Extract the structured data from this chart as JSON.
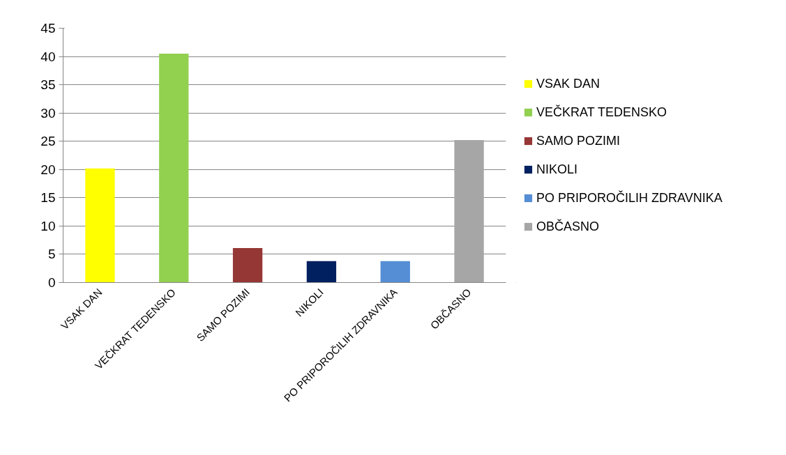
{
  "chart_data": {
    "type": "bar",
    "categories": [
      "VSAK DAN",
      "VEČKRAT TEDENSKO",
      "SAMO POZIMI",
      "NIKOLI",
      "PO PRIPOROČILIH ZDRAVNIKA",
      "OBČASNO"
    ],
    "series": [
      {
        "name": "VSAK DAN",
        "color": "#ffff00",
        "values": [
          20.2,
          null,
          null,
          null,
          null,
          null
        ]
      },
      {
        "name": "VEČKRAT TEDENSKO",
        "color": "#92d050",
        "values": [
          null,
          40.5,
          null,
          null,
          null,
          null
        ]
      },
      {
        "name": "SAMO POZIMI",
        "color": "#953735",
        "values": [
          null,
          null,
          6.1,
          null,
          null,
          null
        ]
      },
      {
        "name": "NIKOLI",
        "color": "#002060",
        "values": [
          null,
          null,
          null,
          3.8,
          null,
          null
        ]
      },
      {
        "name": "PO PRIPOROČILIH ZDRAVNIKA",
        "color": "#558ed5",
        "values": [
          null,
          null,
          null,
          null,
          3.8,
          null
        ]
      },
      {
        "name": "OBČASNO",
        "color": "#a6a6a6",
        "values": [
          null,
          null,
          null,
          null,
          null,
          25.2
        ]
      }
    ],
    "stacked": true,
    "ylim": [
      0,
      45
    ],
    "yticks": [
      0,
      5,
      10,
      15,
      20,
      25,
      30,
      35,
      40,
      45
    ],
    "grid": "y",
    "legend": "right"
  }
}
